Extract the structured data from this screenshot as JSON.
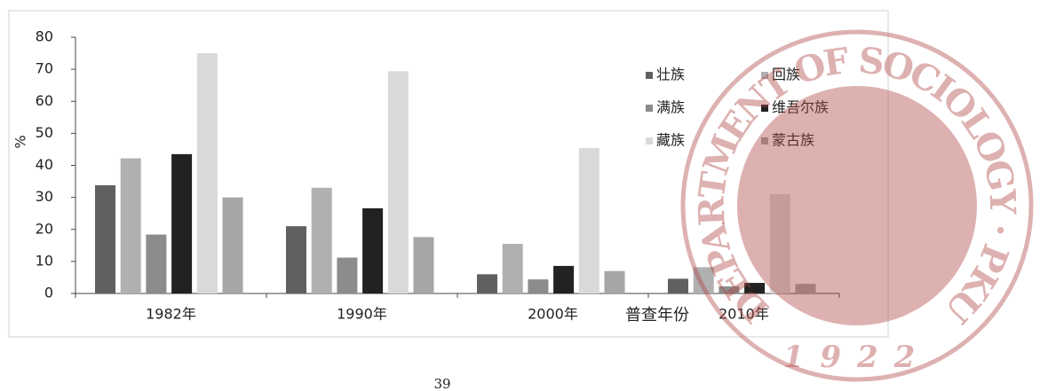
{
  "chart_data": {
    "type": "bar",
    "categories": [
      "1982年",
      "1990年",
      "2000年",
      "2010年"
    ],
    "series": [
      {
        "name": "壮族",
        "color": "#606060",
        "values": [
          33.8,
          21,
          6,
          4.6
        ]
      },
      {
        "name": "回族",
        "color": "#b0b0b0",
        "values": [
          42.2,
          33,
          15.5,
          8.2
        ]
      },
      {
        "name": "满族",
        "color": "#8c8c8c",
        "values": [
          18.4,
          11.2,
          4.4,
          2.2
        ]
      },
      {
        "name": "维吾尔族",
        "color": "#222222",
        "values": [
          43.5,
          26.6,
          8.6,
          3.3
        ]
      },
      {
        "name": "藏族",
        "color": "#d9d9d9",
        "values": [
          75,
          69.4,
          45.4,
          31
        ]
      },
      {
        "name": "蒙古族",
        "color": "#a6a6a6",
        "values": [
          30,
          17.6,
          7,
          3
        ]
      }
    ],
    "ylabel": "%",
    "xlabel": "普查年份",
    "ylim": [
      0,
      80
    ],
    "yticks": [
      0,
      10,
      20,
      30,
      40,
      50,
      60,
      70,
      80
    ],
    "grid": false
  },
  "watermark": {
    "ring_text": "DEPARTMENT OF SOCIOLOGY · PKU",
    "year": "1922"
  },
  "page_number": "39"
}
